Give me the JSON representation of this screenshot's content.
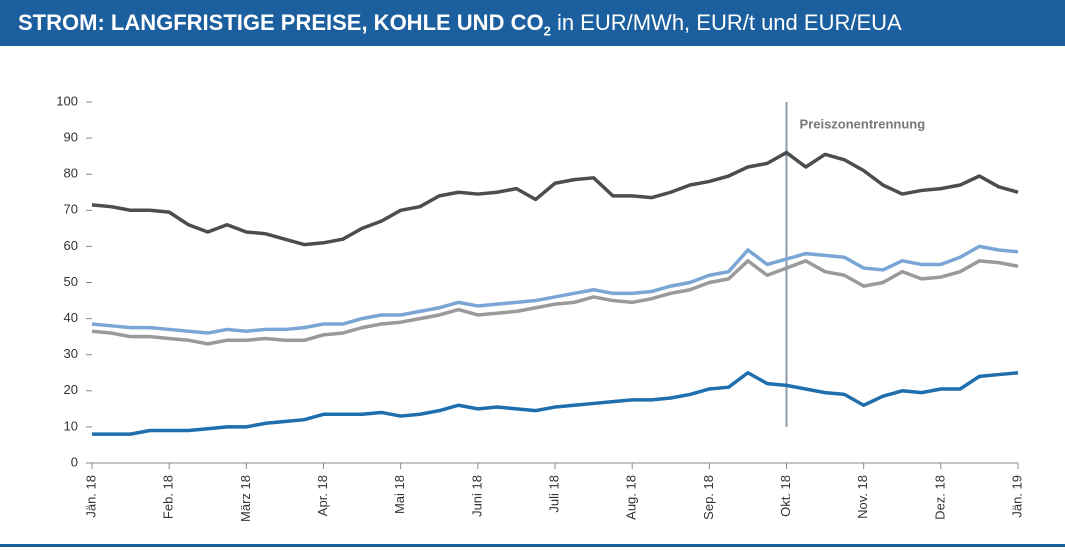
{
  "chart_data": {
    "type": "line",
    "title": "STROM: LANGFRISTIGE PREISE, KOHLE UND CO",
    "title_subscript": "2",
    "subtitle": "in EUR/MWh, EUR/t und EUR/EUA",
    "annotation": {
      "text": "Preiszonentrennung",
      "x": 9
    },
    "x": [
      0,
      0.25,
      0.5,
      0.75,
      1,
      1.25,
      1.5,
      1.75,
      2,
      2.25,
      2.5,
      2.75,
      3,
      3.25,
      3.5,
      3.75,
      4,
      4.25,
      4.5,
      4.75,
      5,
      5.25,
      5.5,
      5.75,
      6,
      6.25,
      6.5,
      6.75,
      7,
      7.25,
      7.5,
      7.75,
      8,
      8.25,
      8.5,
      8.75,
      9,
      9.25,
      9.5,
      9.75,
      10,
      10.25,
      10.5,
      10.75,
      11,
      11.25,
      11.5,
      11.75,
      12
    ],
    "xlim": [
      0,
      12
    ],
    "xticks": [
      {
        "value": 0,
        "label": "Jän. 18"
      },
      {
        "value": 1,
        "label": "Feb. 18"
      },
      {
        "value": 2,
        "label": "März 18"
      },
      {
        "value": 3,
        "label": "Apr. 18"
      },
      {
        "value": 4,
        "label": "Mai 18"
      },
      {
        "value": 5,
        "label": "Juni 18"
      },
      {
        "value": 6,
        "label": "Juli 18"
      },
      {
        "value": 7,
        "label": "Aug. 18"
      },
      {
        "value": 8,
        "label": "Sep. 18"
      },
      {
        "value": 9,
        "label": "Okt. 18"
      },
      {
        "value": 10,
        "label": "Nov. 18"
      },
      {
        "value": 11,
        "label": "Dez. 18"
      },
      {
        "value": 12,
        "label": "Jän. 19"
      }
    ],
    "ylim": [
      0,
      100
    ],
    "yticks": [
      0,
      10,
      20,
      30,
      40,
      50,
      60,
      70,
      80,
      90,
      100
    ],
    "grid": false,
    "series": [
      {
        "color": "#4d4d4d",
        "values": [
          71.5,
          71,
          70,
          70,
          69.5,
          66,
          64,
          66,
          64,
          63.5,
          62,
          60.5,
          61,
          62,
          65,
          67,
          70,
          71,
          74,
          75,
          74.5,
          75,
          76,
          73,
          77.5,
          78.5,
          79,
          74,
          74,
          73.5,
          75,
          77,
          78,
          79.5,
          82,
          83,
          86,
          82,
          85.5,
          84,
          81,
          77,
          74.5,
          75.5,
          76,
          77,
          79.5,
          76.5,
          75
        ]
      },
      {
        "color": "#7aa6d6",
        "values": [
          38.5,
          38,
          37.5,
          37.5,
          37,
          36.5,
          36,
          37,
          36.5,
          37,
          37,
          37.5,
          38.5,
          38.5,
          40,
          41,
          41,
          42,
          43,
          44.5,
          43.5,
          44,
          44.5,
          45,
          46,
          47,
          48,
          47,
          47,
          47.5,
          49,
          50,
          52,
          53,
          59,
          55,
          56.5,
          58,
          57.5,
          57,
          54,
          53.5,
          56,
          55,
          55,
          57,
          60,
          59,
          58.5
        ]
      },
      {
        "color": "#9a9a9a",
        "values": [
          36.5,
          36,
          35,
          35,
          34.5,
          34,
          33,
          34,
          34,
          34.5,
          34,
          34,
          35.5,
          36,
          37.5,
          38.5,
          39,
          40,
          41,
          42.5,
          41,
          41.5,
          42,
          43,
          44,
          44.5,
          46,
          45,
          44.5,
          45.5,
          47,
          48,
          50,
          51,
          56,
          52,
          54,
          56,
          53,
          52,
          49,
          50,
          53,
          51,
          51.5,
          53,
          56,
          55.5,
          54.5
        ]
      },
      {
        "color": "#1f6fae",
        "values": [
          8,
          8,
          8,
          9,
          9,
          9,
          9.5,
          10,
          10,
          11,
          11.5,
          12,
          13.5,
          13.5,
          13.5,
          14,
          13,
          13.5,
          14.5,
          16,
          15,
          15.5,
          15,
          14.5,
          15.5,
          16,
          16.5,
          17,
          17.5,
          17.5,
          18,
          19,
          20.5,
          21,
          25,
          22,
          21.5,
          20.5,
          19.5,
          19,
          16,
          18.5,
          20,
          19.5,
          20.5,
          20.5,
          24,
          24.5,
          25
        ]
      }
    ]
  }
}
